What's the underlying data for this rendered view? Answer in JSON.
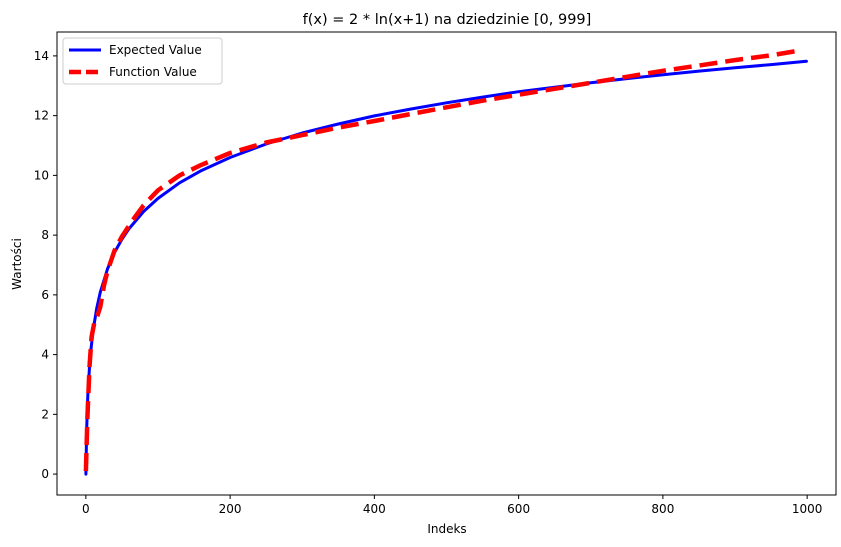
{
  "chart_data": {
    "type": "line",
    "title": "f(x) = 2 * ln(x+1) na dziedzinie [0, 999]",
    "xlabel": "Indeks",
    "ylabel": "Wartości",
    "xlim": [
      -40,
      1040
    ],
    "ylim": [
      -0.7,
      14.8
    ],
    "xticks": [
      0,
      200,
      400,
      600,
      800,
      1000
    ],
    "yticks": [
      0,
      2,
      4,
      6,
      8,
      10,
      12,
      14
    ],
    "legend_position": "upper-left",
    "grid": false,
    "series": [
      {
        "name": "Expected Value",
        "style": "solid",
        "color": "#0000ff",
        "x": [
          0,
          1,
          2,
          3,
          5,
          7,
          10,
          15,
          20,
          30,
          40,
          50,
          60,
          80,
          100,
          130,
          160,
          200,
          250,
          300,
          350,
          400,
          450,
          500,
          550,
          600,
          650,
          700,
          750,
          800,
          850,
          900,
          950,
          999
        ],
        "values": [
          0.0,
          1.39,
          2.2,
          2.77,
          3.58,
          4.16,
          4.8,
          5.55,
          6.09,
          6.87,
          7.43,
          7.86,
          8.22,
          8.79,
          9.23,
          9.75,
          10.16,
          10.6,
          11.05,
          11.42,
          11.72,
          11.99,
          12.22,
          12.43,
          12.62,
          12.8,
          12.95,
          13.1,
          13.24,
          13.37,
          13.49,
          13.6,
          13.71,
          13.82
        ]
      },
      {
        "name": "Function Value",
        "style": "dashed",
        "color": "#ff0000",
        "x": [
          0,
          2,
          5,
          8,
          12,
          16,
          20,
          25,
          30,
          40,
          50,
          65,
          80,
          100,
          130,
          160,
          200,
          250,
          300,
          350,
          400,
          450,
          500,
          550,
          600,
          650,
          700,
          750,
          800,
          850,
          900,
          950,
          990
        ],
        "values": [
          0.1,
          1.8,
          3.6,
          4.6,
          5.1,
          5.3,
          5.6,
          6.3,
          6.8,
          7.5,
          7.95,
          8.5,
          9.0,
          9.5,
          10.0,
          10.35,
          10.75,
          11.1,
          11.35,
          11.6,
          11.82,
          12.05,
          12.28,
          12.5,
          12.7,
          12.9,
          13.1,
          13.3,
          13.5,
          13.68,
          13.86,
          14.02,
          14.18
        ]
      }
    ]
  }
}
